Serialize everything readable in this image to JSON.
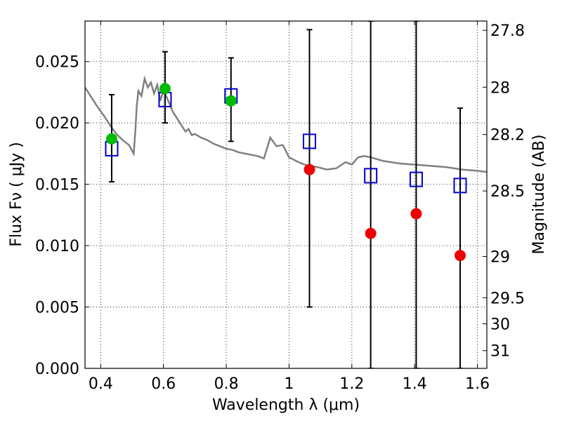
{
  "chart_data": {
    "type": "scatter",
    "xlabel": "Wavelength  λ (μm)",
    "ylabel": "Flux  Fν  ( μJy )",
    "y2label": "Magnitude (AB)",
    "xlim": [
      0.35,
      1.63
    ],
    "ylim": [
      0.0,
      0.0283
    ],
    "grid": true,
    "x_ticks": [
      {
        "v": 0.4,
        "label": "0.4"
      },
      {
        "v": 0.6,
        "label": "0.6"
      },
      {
        "v": 0.8,
        "label": "0.8"
      },
      {
        "v": 1.0,
        "label": "1"
      },
      {
        "v": 1.2,
        "label": "1.2"
      },
      {
        "v": 1.4,
        "label": "1.4"
      },
      {
        "v": 1.6,
        "label": "1.6"
      }
    ],
    "y_ticks": [
      {
        "v": 0.0,
        "label": "0.000"
      },
      {
        "v": 0.005,
        "label": "0.005"
      },
      {
        "v": 0.01,
        "label": "0.010"
      },
      {
        "v": 0.015,
        "label": "0.015"
      },
      {
        "v": 0.02,
        "label": "0.020"
      },
      {
        "v": 0.025,
        "label": "0.025"
      }
    ],
    "y2_ticks": [
      {
        "mag": 27.8,
        "label": "27.8"
      },
      {
        "mag": 28.0,
        "label": "28"
      },
      {
        "mag": 28.2,
        "label": "28.2"
      },
      {
        "mag": 28.5,
        "label": "28.5"
      },
      {
        "mag": 29.0,
        "label": "29"
      },
      {
        "mag": 29.5,
        "label": "29.5"
      },
      {
        "mag": 30.0,
        "label": "30"
      },
      {
        "mag": 31.0,
        "label": "31"
      }
    ],
    "template_spectrum": {
      "color": "#808080",
      "x": [
        0.35,
        0.37,
        0.39,
        0.41,
        0.43,
        0.45,
        0.47,
        0.49,
        0.505,
        0.51,
        0.515,
        0.52,
        0.53,
        0.54,
        0.55,
        0.56,
        0.57,
        0.58,
        0.59,
        0.6,
        0.61,
        0.62,
        0.63,
        0.64,
        0.65,
        0.66,
        0.67,
        0.68,
        0.69,
        0.7,
        0.72,
        0.74,
        0.76,
        0.78,
        0.8,
        0.82,
        0.84,
        0.86,
        0.88,
        0.9,
        0.92,
        0.94,
        0.96,
        0.98,
        1.0,
        1.03,
        1.06,
        1.09,
        1.12,
        1.15,
        1.18,
        1.2,
        1.22,
        1.24,
        1.26,
        1.3,
        1.35,
        1.4,
        1.45,
        1.5,
        1.55,
        1.6,
        1.63
      ],
      "y": [
        0.0229,
        0.0221,
        0.0213,
        0.0206,
        0.0198,
        0.0191,
        0.0186,
        0.0182,
        0.0175,
        0.0192,
        0.0214,
        0.0226,
        0.0222,
        0.0236,
        0.0229,
        0.0233,
        0.0224,
        0.0231,
        0.0218,
        0.0227,
        0.0221,
        0.0215,
        0.0209,
        0.0205,
        0.0201,
        0.0197,
        0.0193,
        0.0195,
        0.019,
        0.0191,
        0.0188,
        0.0186,
        0.0183,
        0.0181,
        0.0179,
        0.0178,
        0.0176,
        0.0175,
        0.0174,
        0.0173,
        0.0171,
        0.0188,
        0.0181,
        0.0182,
        0.0172,
        0.0168,
        0.0165,
        0.0164,
        0.0162,
        0.0163,
        0.0168,
        0.0166,
        0.0172,
        0.0173,
        0.0172,
        0.0169,
        0.0167,
        0.0166,
        0.0165,
        0.0164,
        0.0162,
        0.0161,
        0.016
      ]
    },
    "series": [
      {
        "marker": "open-square",
        "color": "#0000cc",
        "x": [
          0.435,
          0.605,
          0.815,
          1.065,
          1.26,
          1.405,
          1.545
        ],
        "values": [
          0.0179,
          0.0219,
          0.0222,
          0.0185,
          0.0157,
          0.0154,
          0.0149
        ]
      },
      {
        "marker": "filled-circle",
        "color": "#00bb00",
        "x": [
          0.435,
          0.605,
          0.815
        ],
        "values": [
          0.0187,
          0.0228,
          0.0218
        ],
        "yerr_low": [
          0.0035,
          0.0028,
          0.0033
        ],
        "yerr_high": [
          0.0036,
          0.003,
          0.0035
        ]
      },
      {
        "marker": "filled-circle",
        "color": "#ee0000",
        "x": [
          1.065,
          1.26,
          1.405,
          1.545
        ],
        "values": [
          0.0162,
          0.011,
          0.0126,
          0.0092
        ],
        "yerr_low": [
          0.0112,
          0.011,
          0.0126,
          0.0092
        ],
        "yerr_high": [
          0.0114,
          0.0173,
          0.0157,
          0.012
        ]
      }
    ]
  }
}
